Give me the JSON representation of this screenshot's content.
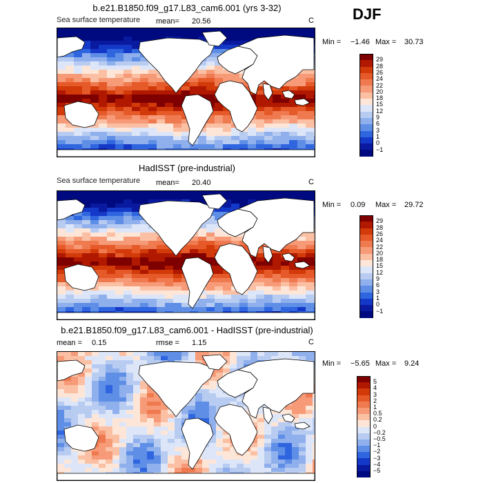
{
  "season": "DJF",
  "panels": [
    {
      "id": "model",
      "title": "b.e21.B1850.f09_g17.L83_cam6.001 (yrs 3-32)",
      "variable": "Sea surface temperature",
      "mean_label": "mean=",
      "mean_value": "20.56",
      "units": "C",
      "min_label": "Min =",
      "min_value": "−1.46",
      "max_label": "Max =",
      "max_value": "30.73",
      "colorbar": {
        "levels": [
          "29",
          "28",
          "26",
          "24",
          "22",
          "20",
          "18",
          "15",
          "12",
          "9",
          "6",
          "3",
          "1",
          "0",
          "−1"
        ],
        "colors": [
          "#7f0000",
          "#b01800",
          "#d23a0a",
          "#e65a2a",
          "#f07a50",
          "#f69a78",
          "#fbc0a4",
          "#fde6d8",
          "#dde6f8",
          "#b8ccf2",
          "#8fb0ec",
          "#5f8ee6",
          "#2f66e0",
          "#1438c8",
          "#0a1aa0",
          "#000a80"
        ]
      }
    },
    {
      "id": "obs",
      "title": "HadISST (pre-industrial)",
      "variable": "Sea surface temperature",
      "mean_label": "mean=",
      "mean_value": "20.40",
      "units": "C",
      "min_label": "Min =",
      "min_value": "0.09",
      "max_label": "Max =",
      "max_value": "29.72",
      "colorbar": {
        "levels": [
          "29",
          "28",
          "26",
          "24",
          "22",
          "20",
          "18",
          "15",
          "12",
          "9",
          "6",
          "3",
          "1",
          "0",
          "−1"
        ],
        "colors": [
          "#7f0000",
          "#b01800",
          "#d23a0a",
          "#e65a2a",
          "#f07a50",
          "#f69a78",
          "#fbc0a4",
          "#fde6d8",
          "#dde6f8",
          "#b8ccf2",
          "#8fb0ec",
          "#5f8ee6",
          "#2f66e0",
          "#1438c8",
          "#0a1aa0",
          "#000a80"
        ]
      }
    },
    {
      "id": "diff",
      "title": "b.e21.B1850.f09_g17.L83_cam6.001 - HadISST (pre-industrial)",
      "mean_label": "mean =",
      "mean_value": "0.15",
      "rmse_label": "rmse =",
      "rmse_value": "1.15",
      "units": "C",
      "min_label": "Min =",
      "min_value": "−5.65",
      "max_label": "Max =",
      "max_value": "9.24",
      "colorbar": {
        "levels": [
          "5",
          "4",
          "3",
          "2",
          "1",
          "0.5",
          "0.2",
          "0",
          "−0.2",
          "−0.5",
          "−1",
          "−2",
          "−3",
          "−4",
          "−5"
        ],
        "colors": [
          "#7f0000",
          "#b01800",
          "#d23a0a",
          "#e65a2a",
          "#f07a50",
          "#f69a78",
          "#fbc0a4",
          "#fde6d8",
          "#dde6f8",
          "#b8ccf2",
          "#8fb0ec",
          "#5f8ee6",
          "#2f66e0",
          "#1438c8",
          "#0a1aa0",
          "#000a80"
        ]
      }
    }
  ],
  "chart_data": [
    {
      "type": "heatmap",
      "title": "b.e21.B1850.f09_g17.L83_cam6.001 (yrs 3-32)",
      "variable": "Sea surface temperature",
      "season": "DJF",
      "units": "C",
      "mean": 20.56,
      "min": -1.46,
      "max": 30.73,
      "contour_levels": [
        -1,
        0,
        1,
        3,
        6,
        9,
        12,
        15,
        18,
        20,
        22,
        24,
        26,
        28,
        29
      ]
    },
    {
      "type": "heatmap",
      "title": "HadISST (pre-industrial)",
      "variable": "Sea surface temperature",
      "season": "DJF",
      "units": "C",
      "mean": 20.4,
      "min": 0.09,
      "max": 29.72,
      "contour_levels": [
        -1,
        0,
        1,
        3,
        6,
        9,
        12,
        15,
        18,
        20,
        22,
        24,
        26,
        28,
        29
      ]
    },
    {
      "type": "heatmap",
      "title": "b.e21.B1850.f09_g17.L83_cam6.001 - HadISST (pre-industrial)",
      "season": "DJF",
      "units": "C",
      "mean": 0.15,
      "rmse": 1.15,
      "min": -5.65,
      "max": 9.24,
      "contour_levels": [
        -5,
        -4,
        -3,
        -2,
        -1,
        -0.5,
        -0.2,
        0,
        0.2,
        0.5,
        1,
        2,
        3,
        4,
        5
      ]
    }
  ]
}
